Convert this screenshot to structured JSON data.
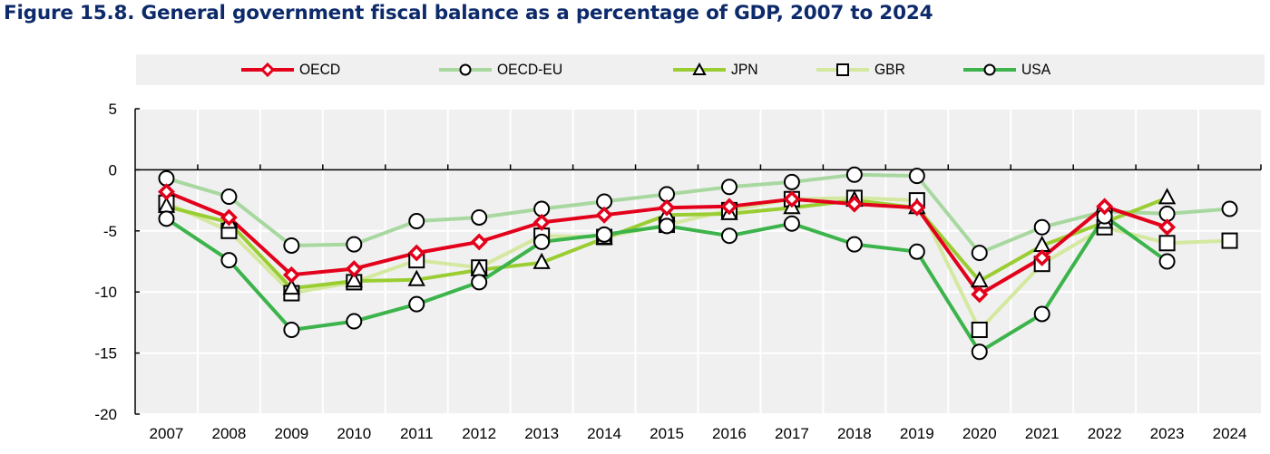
{
  "title": "Figure 15.8. General government fiscal balance as a percentage of GDP, 2007 to 2024",
  "chart_data": {
    "type": "line",
    "title": "Figure 15.8. General government fiscal balance as a percentage of GDP, 2007 to 2024",
    "xlabel": "",
    "ylabel": "",
    "ylim": [
      -20,
      5
    ],
    "yticks": [
      5,
      0,
      -5,
      -10,
      -15,
      -20
    ],
    "grid": true,
    "legend_position": "top",
    "categories": [
      "2007",
      "2008",
      "2009",
      "2010",
      "2011",
      "2012",
      "2013",
      "2014",
      "2015",
      "2016",
      "2017",
      "2018",
      "2019",
      "2020",
      "2021",
      "2022",
      "2023",
      "2024"
    ],
    "series": [
      {
        "name": "OECD",
        "color": "#e3001b",
        "marker": "diamond",
        "values": [
          -1.8,
          -3.9,
          -8.6,
          -8.1,
          -6.8,
          -5.9,
          -4.3,
          -3.7,
          -3.1,
          -3.0,
          -2.4,
          -2.8,
          -3.1,
          -10.2,
          -7.2,
          -3.0,
          -4.7,
          null
        ]
      },
      {
        "name": "OECD-EU",
        "color": "#a8d8a0",
        "marker": "circle",
        "values": [
          -0.7,
          -2.2,
          -6.2,
          -6.1,
          -4.2,
          -3.9,
          -3.2,
          -2.6,
          -2.0,
          -1.4,
          -1.0,
          -0.4,
          -0.5,
          -6.8,
          -4.7,
          -3.4,
          -3.6,
          -3.2
        ]
      },
      {
        "name": "JPN",
        "color": "#9acd32",
        "marker": "triangle",
        "values": [
          -3.0,
          -4.3,
          -9.7,
          -9.1,
          -9.0,
          -8.2,
          -7.6,
          -5.6,
          -3.7,
          -3.6,
          -3.1,
          -2.5,
          -3.1,
          -9.1,
          -6.2,
          -4.3,
          -2.3,
          null
        ]
      },
      {
        "name": "GBR",
        "color": "#d4e8a0",
        "marker": "square",
        "values": [
          -2.7,
          -5.0,
          -10.1,
          -9.2,
          -7.4,
          -8.0,
          -5.4,
          -5.5,
          -4.5,
          -3.3,
          -2.4,
          -2.3,
          -2.5,
          -13.1,
          -7.7,
          -4.7,
          -6.0,
          -5.8
        ]
      },
      {
        "name": "USA",
        "color": "#3cb44b",
        "marker": "circle",
        "values": [
          -4.0,
          -7.4,
          -13.1,
          -12.4,
          -11.0,
          -9.2,
          -5.9,
          -5.3,
          -4.6,
          -5.4,
          -4.4,
          -6.1,
          -6.7,
          -14.9,
          -11.8,
          -3.8,
          -7.5,
          null
        ]
      }
    ]
  },
  "legend": {
    "items": [
      {
        "label": "OECD"
      },
      {
        "label": "OECD-EU"
      },
      {
        "label": "JPN"
      },
      {
        "label": "GBR"
      },
      {
        "label": "USA"
      }
    ]
  }
}
